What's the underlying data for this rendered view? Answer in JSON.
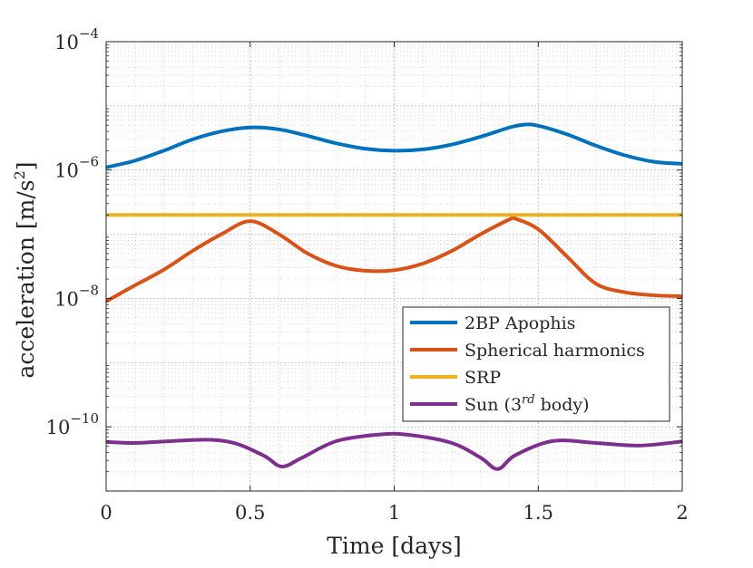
{
  "chart_data": {
    "type": "line",
    "title": "",
    "xlabel": "Time [days]",
    "ylabel": {
      "main": "acceleration [m/s",
      "sup": "2",
      "close": "]"
    },
    "xlim": [
      0,
      2
    ],
    "ylim": [
      1e-11,
      0.0001
    ],
    "yscale": "log",
    "grid": true,
    "minor_grid": true,
    "legend_location": "right-middle",
    "x_ticks": [
      {
        "value": 0,
        "label": "0"
      },
      {
        "value": 0.5,
        "label": "0.5"
      },
      {
        "value": 1,
        "label": "1"
      },
      {
        "value": 1.5,
        "label": "1.5"
      },
      {
        "value": 2,
        "label": "2"
      }
    ],
    "y_ticks": [
      {
        "value": 1e-10,
        "base": "10",
        "exp": "−10"
      },
      {
        "value": 1e-08,
        "base": "10",
        "exp": "−8"
      },
      {
        "value": 1e-06,
        "base": "10",
        "exp": "−6"
      },
      {
        "value": 0.0001,
        "base": "10",
        "exp": "−4"
      }
    ],
    "series": [
      {
        "name": "2BP Apophis",
        "legend": {
          "text": "2BP Apophis",
          "sup": "",
          "after": ""
        },
        "color": "#0072BD",
        "x": [
          0,
          0.1,
          0.2,
          0.3,
          0.4,
          0.5,
          0.6,
          0.7,
          0.8,
          0.9,
          1.0,
          1.1,
          1.2,
          1.3,
          1.4,
          1.45,
          1.5,
          1.6,
          1.7,
          1.8,
          1.9,
          2.0
        ],
        "y": [
          1.1e-06,
          1.4e-06,
          2e-06,
          3e-06,
          4e-06,
          4.6e-06,
          4.3e-06,
          3.4e-06,
          2.6e-06,
          2.15e-06,
          2e-06,
          2.1e-06,
          2.5e-06,
          3.3e-06,
          4.6e-06,
          5.1e-06,
          4.9e-06,
          3.6e-06,
          2.4e-06,
          1.7e-06,
          1.35e-06,
          1.25e-06
        ]
      },
      {
        "name": "Spherical harmonics",
        "legend": {
          "text": "Spherical harmonics",
          "sup": "",
          "after": ""
        },
        "color": "#D95319",
        "x": [
          0,
          0.05,
          0.1,
          0.2,
          0.3,
          0.4,
          0.5,
          0.6,
          0.7,
          0.8,
          0.9,
          1.0,
          1.1,
          1.2,
          1.3,
          1.4,
          1.42,
          1.5,
          1.6,
          1.7,
          1.8,
          1.9,
          2.0
        ],
        "y": [
          9e-09,
          1.2e-08,
          1.6e-08,
          2.8e-08,
          5.5e-08,
          1e-07,
          1.6e-07,
          1e-07,
          5e-08,
          3.2e-08,
          2.7e-08,
          2.75e-08,
          3.5e-08,
          5.5e-08,
          1e-07,
          1.7e-07,
          1.75e-07,
          1.2e-07,
          4.5e-08,
          1.7e-08,
          1.25e-08,
          1.12e-08,
          1.08e-08
        ]
      },
      {
        "name": "SRP",
        "legend": {
          "text": "SRP",
          "sup": "",
          "after": ""
        },
        "color": "#EDB120",
        "x": [
          0,
          2.0
        ],
        "y": [
          2e-07,
          2e-07
        ]
      },
      {
        "name": "Sun (3rd body)",
        "legend": {
          "text": "Sun (3",
          "sup": "rd",
          "after": " body)"
        },
        "color": "#7E2F8E",
        "x": [
          0,
          0.1,
          0.2,
          0.35,
          0.45,
          0.55,
          0.61,
          0.68,
          0.8,
          0.95,
          1.05,
          1.2,
          1.3,
          1.36,
          1.42,
          1.55,
          1.7,
          1.85,
          2.0
        ],
        "y": [
          5.8e-11,
          5.6e-11,
          5.9e-11,
          6.3e-11,
          5.5e-11,
          3.5e-11,
          2.4e-11,
          3.3e-11,
          6e-11,
          7.6e-11,
          7.5e-11,
          5.6e-11,
          3.3e-11,
          2.2e-11,
          3.6e-11,
          6e-11,
          5.6e-11,
          5.1e-11,
          5.9e-11
        ]
      }
    ]
  }
}
